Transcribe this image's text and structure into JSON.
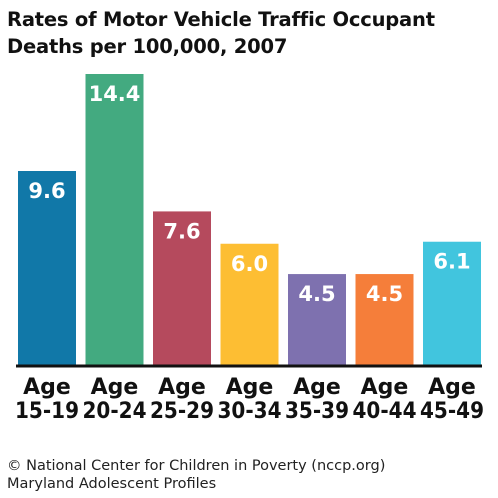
{
  "chart_data": {
    "type": "bar",
    "title": [
      "Rates of Motor Vehicle Traffic Occupant",
      "Deaths per 100,000, 2007"
    ],
    "categories": [
      [
        "Age",
        "15-19"
      ],
      [
        "Age",
        "20-24"
      ],
      [
        "Age",
        "25-29"
      ],
      [
        "Age",
        "30-34"
      ],
      [
        "Age",
        "35-39"
      ],
      [
        "Age",
        "40-44"
      ],
      [
        "Age",
        "45-49"
      ]
    ],
    "values": [
      9.6,
      14.4,
      7.6,
      6.0,
      4.5,
      4.5,
      6.1
    ],
    "value_labels": [
      "9.6",
      "14.4",
      "7.6",
      "6.0",
      "4.5",
      "4.5",
      "6.1"
    ],
    "colors": [
      "#1178A8",
      "#43AA80",
      "#B54A5D",
      "#FDBE33",
      "#7E71AF",
      "#F57E3A",
      "#41C5DE"
    ],
    "ylim": [
      0,
      14.4
    ],
    "xlabel": "",
    "ylabel": "",
    "grid": false,
    "legend": "none"
  },
  "footer": {
    "line1": "© National Center for Children in Poverty (nccp.org)",
    "line2": "Maryland Adolescent Profiles"
  }
}
